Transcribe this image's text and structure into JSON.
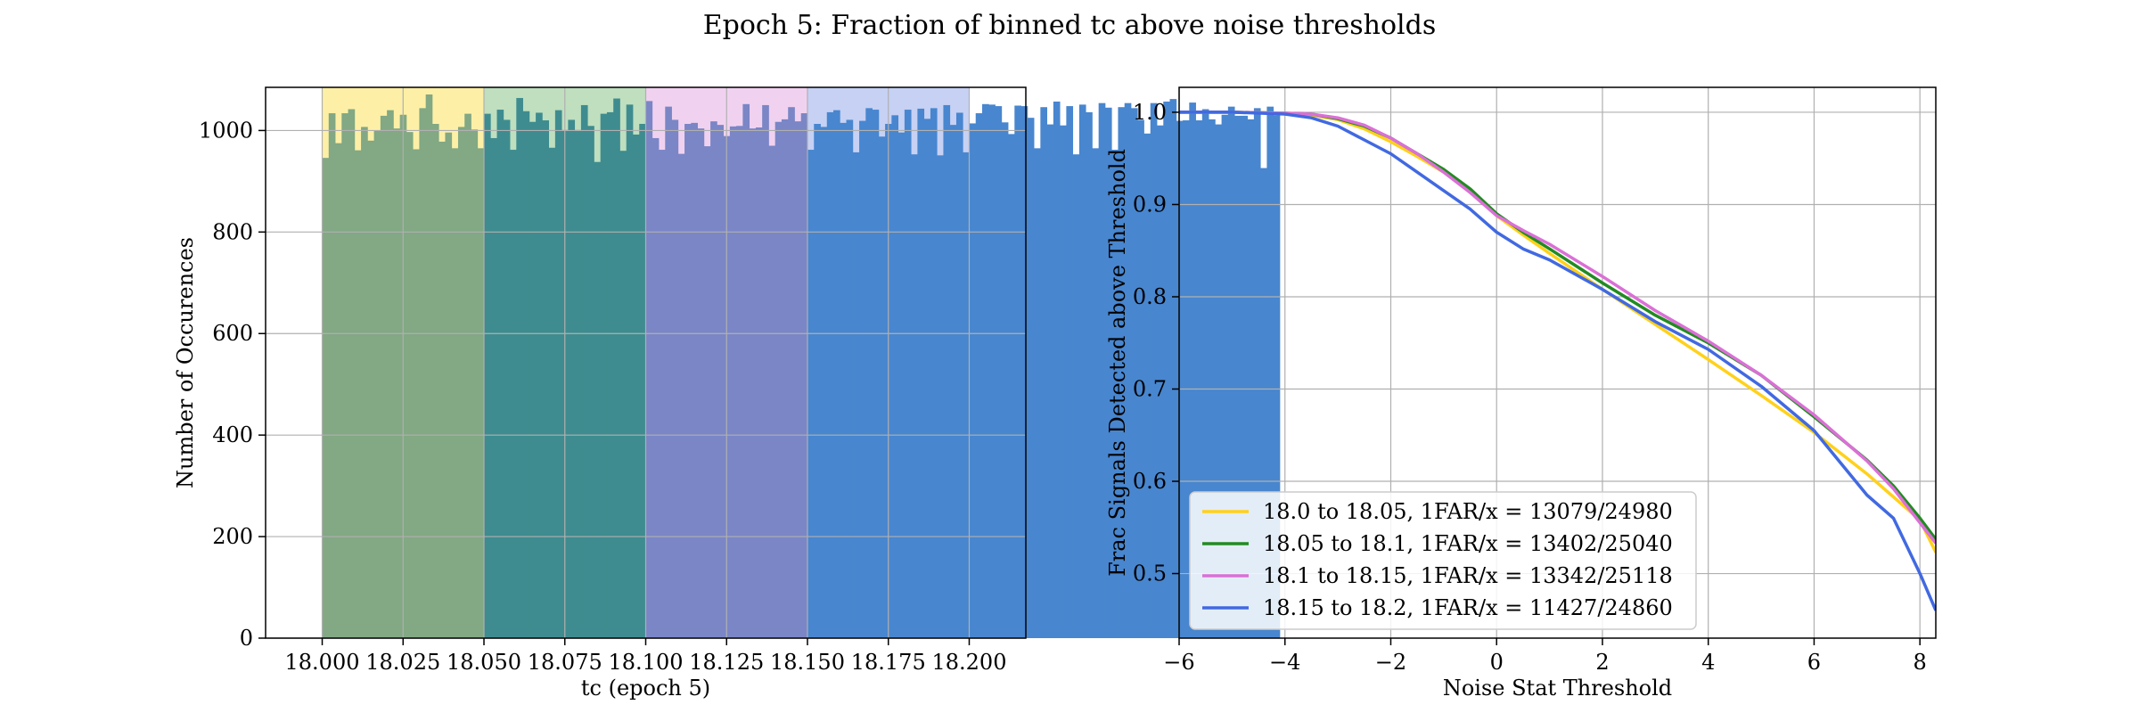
{
  "suptitle": "Epoch 5: Fraction of binned tc above noise thresholds",
  "chart_data": [
    {
      "type": "bar",
      "title": "",
      "xlabel": "tc (epoch 5)",
      "ylabel": "Number of Occurences",
      "xlim": [
        17.9825,
        18.2175
      ],
      "ylim": [
        0,
        1085
      ],
      "xticks": [
        "18.000",
        "18.025",
        "18.050",
        "18.075",
        "18.100",
        "18.125",
        "18.150",
        "18.175",
        "18.200"
      ],
      "yticks": [
        "0",
        "200",
        "400",
        "600",
        "800",
        "1000"
      ],
      "grid": true,
      "bin_start": 18.0,
      "bin_width": 0.002,
      "values": [
        946,
        1034,
        975,
        1034,
        1042,
        961,
        1007,
        980,
        1000,
        1029,
        1040,
        1004,
        1031,
        997,
        963,
        1044,
        1071,
        1013,
        978,
        996,
        965,
        1007,
        1033,
        1002,
        965,
        1033,
        985,
        1041,
        1021,
        962,
        1064,
        1038,
        1017,
        1035,
        1020,
        966,
        1040,
        1001,
        1021,
        1001,
        1050,
        1009,
        938,
        1033,
        1036,
        1063,
        960,
        1051,
        992,
        1013,
        1058,
        985,
        962,
        1047,
        1021,
        954,
        1013,
        1015,
        1004,
        969,
        1018,
        1011,
        989,
        1008,
        1009,
        1052,
        1004,
        1006,
        1050,
        970,
        1017,
        1022,
        1046,
        1018,
        1034,
        962,
        1013,
        1007,
        1036,
        1040,
        1015,
        1021,
        957,
        1019,
        1044,
        1041,
        988,
        1013,
        1030,
        996,
        1041,
        953,
        1043,
        1023,
        1044,
        951,
        1050,
        1011,
        1035,
        957,
        1014,
        1034,
        1052,
        1051,
        1048,
        1016,
        993,
        1049,
        1048,
        1025,
        965,
        1046,
        1012,
        1057,
        1010,
        1048,
        953,
        1051,
        1036,
        965,
        1054,
        1045,
        962,
        1046,
        1054,
        1044,
        1021,
        994,
        1054,
        1010,
        1057,
        1062,
        1019,
        1020,
        1055,
        1020,
        1042,
        1022,
        1012,
        1031,
        1047,
        1029,
        1029,
        1022,
        1044,
        926,
        1047,
        1030
      ],
      "regions": [
        {
          "x0": 18.0,
          "x1": 18.05,
          "band_color": "#fdf0a6",
          "bar_color": "#82a884"
        },
        {
          "x0": 18.05,
          "x1": 18.1,
          "band_color": "#bfdfbf",
          "bar_color": "#3e8c8f"
        },
        {
          "x0": 18.1,
          "x1": 18.15,
          "band_color": "#f0d2f0",
          "bar_color": "#7a86c6"
        },
        {
          "x0": 18.15,
          "x1": 18.2,
          "band_color": "#c6d1f4",
          "bar_color": "#4886cf"
        }
      ]
    },
    {
      "type": "line",
      "title": "",
      "xlabel": "Noise Stat Threshold",
      "ylabel": "Frac Signals Detected above Threshold",
      "xlim": [
        -6,
        8.3
      ],
      "ylim": [
        0.43,
        1.027
      ],
      "xticks": [
        -6,
        -4,
        -2,
        0,
        2,
        4,
        6,
        8
      ],
      "yticks": [
        0.5,
        0.6,
        0.7,
        0.8,
        0.9,
        1.0
      ],
      "grid": true,
      "legend_position": "lower-left",
      "series": [
        {
          "name": "18.0 to 18.05, 1FAR/x = 13079/24980",
          "color": "#ffd11a",
          "x": [
            -6,
            -5,
            -4,
            -3.5,
            -3,
            -2.5,
            -2,
            -1.5,
            -1,
            -0.5,
            0,
            0.5,
            1,
            2,
            3,
            4,
            5,
            6,
            7,
            8,
            8.3
          ],
          "y": [
            1.0,
            1.0,
            0.999,
            0.997,
            0.992,
            0.982,
            0.968,
            0.952,
            0.935,
            0.915,
            0.888,
            0.867,
            0.847,
            0.808,
            0.77,
            0.732,
            0.693,
            0.653,
            0.608,
            0.558,
            0.523
          ]
        },
        {
          "name": "18.05 to 18.1, 1FAR/x = 13402/25040",
          "color": "#228b22",
          "x": [
            -6,
            -5,
            -4,
            -3.5,
            -3,
            -2.5,
            -2,
            -1.5,
            -1,
            -0.5,
            0,
            0.5,
            1,
            2,
            3,
            4,
            5,
            6,
            7,
            7.5,
            8,
            8.3
          ],
          "y": [
            1.0,
            1.0,
            0.999,
            0.998,
            0.993,
            0.985,
            0.972,
            0.955,
            0.938,
            0.917,
            0.89,
            0.87,
            0.852,
            0.815,
            0.78,
            0.75,
            0.715,
            0.67,
            0.623,
            0.595,
            0.56,
            0.537
          ]
        },
        {
          "name": "18.1 to 18.15, 1FAR/x = 13342/25118",
          "color": "#da70d6",
          "x": [
            -6,
            -5,
            -4,
            -3.5,
            -3,
            -2.5,
            -2,
            -1.5,
            -1,
            -0.5,
            0,
            0.5,
            1,
            2,
            3,
            4,
            5,
            6,
            7,
            7.5,
            8,
            8.3
          ],
          "y": [
            1.0,
            1.0,
            0.999,
            0.998,
            0.994,
            0.986,
            0.972,
            0.955,
            0.935,
            0.913,
            0.888,
            0.872,
            0.857,
            0.822,
            0.785,
            0.752,
            0.715,
            0.672,
            0.622,
            0.592,
            0.555,
            0.533
          ]
        },
        {
          "name": "18.15 to 18.2, 1FAR/x = 11427/24860",
          "color": "#4169e1",
          "x": [
            -6,
            -5,
            -4,
            -3.5,
            -3,
            -2.5,
            -2,
            -1.5,
            -1,
            -0.5,
            0,
            0.5,
            1,
            2,
            3,
            4,
            5,
            6,
            7,
            7.5,
            8,
            8.3
          ],
          "y": [
            1.0,
            1.0,
            0.998,
            0.994,
            0.985,
            0.97,
            0.955,
            0.935,
            0.915,
            0.895,
            0.87,
            0.852,
            0.84,
            0.808,
            0.773,
            0.743,
            0.703,
            0.655,
            0.585,
            0.56,
            0.5,
            0.46
          ]
        }
      ]
    }
  ]
}
